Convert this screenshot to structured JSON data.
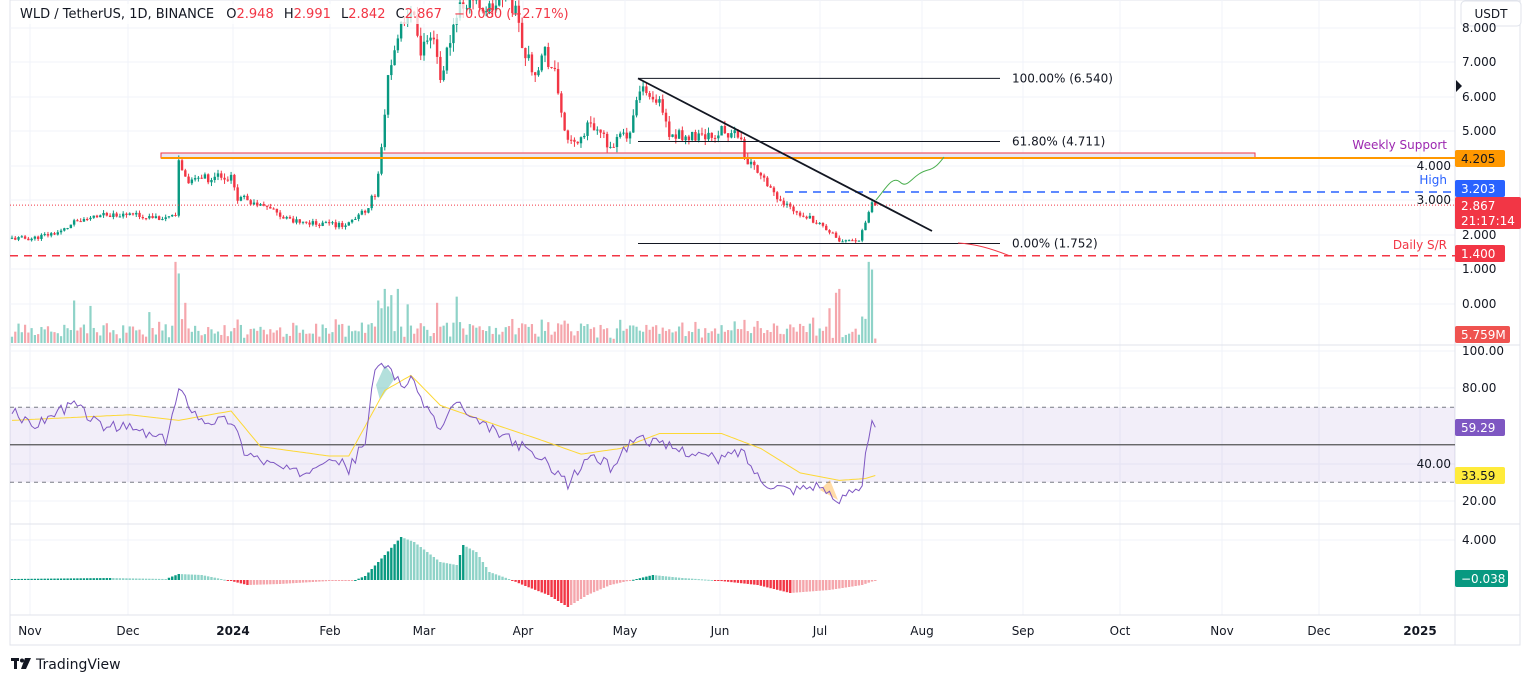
{
  "header": {
    "symbol": "WLD / TetherUS, 1D, BINANCE",
    "o_label": "O",
    "o_value": "2.948",
    "h_label": "H",
    "h_value": "2.991",
    "l_label": "L",
    "l_value": "2.842",
    "c_label": "C",
    "c_value": "2.867",
    "change": "−0.080 (−2.71%)"
  },
  "currency_button": "USDT",
  "price_axis": [
    "8.000",
    "7.000",
    "6.000",
    "5.000",
    "4.000",
    "3.000",
    "2.000",
    "1.000",
    "0.000"
  ],
  "rsi_axis": [
    "100.00",
    "80.00",
    "40.00",
    "20.00"
  ],
  "macd_axis": [
    "4.000"
  ],
  "time_axis": [
    "Nov",
    "Dec",
    "2024",
    "Feb",
    "Mar",
    "Apr",
    "May",
    "Jun",
    "Jul",
    "Aug",
    "Sep",
    "Oct",
    "Nov",
    "Dec",
    "2025"
  ],
  "badges": {
    "weekly_support": "4.205",
    "high": "3.203",
    "last_price": "2.867",
    "countdown": "21:17:14",
    "daily_sr": "1.400",
    "volume": "5.759M",
    "rsi": "59.29",
    "rsi_ma": "33.59",
    "macd": "−0.038"
  },
  "annotations": {
    "weekly_support_label": "Weekly Support",
    "high_label": "High",
    "daily_sr_label": "Daily S/R",
    "fib_100": "100.00% (6.540)",
    "fib_618": "61.80% (4.711)",
    "fib_0": "0.00% (1.752)"
  },
  "colors": {
    "up": "#089981",
    "down": "#f23645",
    "weekly_support": "#ff9800",
    "high": "#2962ff",
    "daily_sr": "#f23645",
    "rsi": "#7e57c2",
    "rsi_ma": "#fdd835",
    "label_purple": "#9c27b0"
  },
  "footer": {
    "brand": "TradingView"
  },
  "chart_data": {
    "type": "candlestick",
    "title": "WLD / TetherUS, 1D, BINANCE",
    "x_unit": "days since first visible candle",
    "ylim": [
      0,
      8.8
    ],
    "price_keypoints": [
      [
        0,
        1.9
      ],
      [
        6,
        1.9
      ],
      [
        15,
        2.1
      ],
      [
        19,
        2.35
      ],
      [
        30,
        2.6
      ],
      [
        36,
        2.6
      ],
      [
        47,
        2.5
      ],
      [
        50,
        2.5
      ],
      [
        51,
        4.1
      ],
      [
        54,
        3.6
      ],
      [
        67,
        3.7
      ],
      [
        69,
        3.1
      ],
      [
        76,
        2.9
      ],
      [
        85,
        2.4
      ],
      [
        97,
        2.3
      ],
      [
        103,
        2.3
      ],
      [
        108,
        2.7
      ],
      [
        111,
        3.2
      ],
      [
        113,
        4.4
      ],
      [
        115,
        6.5
      ],
      [
        117,
        7.5
      ],
      [
        122,
        8.5
      ],
      [
        125,
        7.4
      ],
      [
        129,
        7.5
      ],
      [
        131,
        6.5
      ],
      [
        136,
        8.5
      ],
      [
        140,
        8.9
      ],
      [
        146,
        8.5
      ],
      [
        151,
        9.0
      ],
      [
        154,
        8.5
      ],
      [
        157,
        7.2
      ],
      [
        160,
        6.8
      ],
      [
        163,
        7.3
      ],
      [
        166,
        6.6
      ],
      [
        168,
        5.6
      ],
      [
        170,
        4.6
      ],
      [
        174,
        4.8
      ],
      [
        177,
        5.3
      ],
      [
        180,
        4.9
      ],
      [
        183,
        4.6
      ],
      [
        188,
        4.9
      ],
      [
        190,
        5.3
      ],
      [
        192,
        6.2
      ],
      [
        195,
        5.9
      ],
      [
        198,
        5.8
      ],
      [
        201,
        4.9
      ],
      [
        204,
        4.9
      ],
      [
        210,
        4.8
      ],
      [
        217,
        5.0
      ],
      [
        223,
        4.8
      ],
      [
        224,
        4.2
      ],
      [
        229,
        3.8
      ],
      [
        232,
        3.4
      ],
      [
        235,
        2.9
      ],
      [
        238,
        2.8
      ],
      [
        244,
        2.5
      ],
      [
        249,
        2.2
      ],
      [
        253,
        1.8
      ],
      [
        259,
        1.8
      ],
      [
        261,
        2.4
      ],
      [
        263,
        2.95
      ],
      [
        264,
        2.867
      ]
    ],
    "last_ohlc": {
      "open": 2.948,
      "high": 2.991,
      "low": 2.842,
      "close": 2.867
    },
    "volume_base_m": 12,
    "volume_spikes_m": [
      [
        19,
        55
      ],
      [
        24,
        48
      ],
      [
        42,
        40
      ],
      [
        50,
        105
      ],
      [
        51,
        90
      ],
      [
        53,
        52
      ],
      [
        112,
        55
      ],
      [
        114,
        70
      ],
      [
        116,
        62
      ],
      [
        118,
        70
      ],
      [
        121,
        50
      ],
      [
        130,
        52
      ],
      [
        136,
        60
      ],
      [
        186,
        30
      ],
      [
        221,
        28
      ],
      [
        250,
        45
      ],
      [
        252,
        65
      ],
      [
        253,
        70
      ],
      [
        262,
        105
      ],
      [
        263,
        95
      ],
      [
        264,
        5.759
      ]
    ],
    "rsi_keypoints": [
      [
        0,
        68
      ],
      [
        6,
        60
      ],
      [
        19,
        72
      ],
      [
        27,
        60
      ],
      [
        36,
        59
      ],
      [
        47,
        52
      ],
      [
        51,
        79
      ],
      [
        58,
        63
      ],
      [
        67,
        63
      ],
      [
        71,
        47
      ],
      [
        76,
        42
      ],
      [
        88,
        34
      ],
      [
        97,
        45
      ],
      [
        103,
        37
      ],
      [
        108,
        52
      ],
      [
        111,
        90
      ],
      [
        115,
        93
      ],
      [
        119,
        82
      ],
      [
        122,
        84
      ],
      [
        131,
        58
      ],
      [
        136,
        74
      ],
      [
        140,
        63
      ],
      [
        146,
        59
      ],
      [
        155,
        50
      ],
      [
        166,
        37
      ],
      [
        170,
        29
      ],
      [
        177,
        45
      ],
      [
        183,
        38
      ],
      [
        191,
        55
      ],
      [
        198,
        50
      ],
      [
        210,
        45
      ],
      [
        216,
        42
      ],
      [
        223,
        47
      ],
      [
        229,
        31
      ],
      [
        238,
        26
      ],
      [
        247,
        29
      ],
      [
        252,
        18
      ],
      [
        256,
        26
      ],
      [
        260,
        29
      ],
      [
        261,
        47
      ],
      [
        263,
        61
      ],
      [
        264,
        59.29
      ]
    ],
    "rsi_ma_keypoints": [
      [
        0,
        63
      ],
      [
        36,
        66
      ],
      [
        51,
        63
      ],
      [
        67,
        68
      ],
      [
        76,
        49
      ],
      [
        97,
        44
      ],
      [
        103,
        44
      ],
      [
        114,
        79
      ],
      [
        122,
        87
      ],
      [
        131,
        71
      ],
      [
        149,
        60
      ],
      [
        161,
        53
      ],
      [
        174,
        45
      ],
      [
        186,
        48
      ],
      [
        198,
        56
      ],
      [
        217,
        56
      ],
      [
        229,
        48
      ],
      [
        241,
        35
      ],
      [
        253,
        31
      ],
      [
        261,
        32
      ],
      [
        264,
        33.59
      ]
    ],
    "rsi_levels": {
      "upper": 70,
      "middle": 50,
      "lower": 30
    },
    "macd_hist_keypoints": [
      [
        0,
        0.1
      ],
      [
        30,
        0.2
      ],
      [
        47,
        0.1
      ],
      [
        51,
        0.6
      ],
      [
        58,
        0.5
      ],
      [
        67,
        -0.1
      ],
      [
        72,
        -0.5
      ],
      [
        82,
        -0.4
      ],
      [
        97,
        -0.1
      ],
      [
        105,
        0
      ],
      [
        108,
        0.4
      ],
      [
        114,
        2.5
      ],
      [
        119,
        4.3
      ],
      [
        123,
        3.8
      ],
      [
        131,
        1.8
      ],
      [
        136,
        1.5
      ],
      [
        138,
        3.5
      ],
      [
        142,
        2.8
      ],
      [
        146,
        0.8
      ],
      [
        152,
        0.1
      ],
      [
        157,
        -0.6
      ],
      [
        164,
        -1.5
      ],
      [
        170,
        -2.7
      ],
      [
        176,
        -1.5
      ],
      [
        183,
        -0.5
      ],
      [
        191,
        0.1
      ],
      [
        196,
        0.5
      ],
      [
        205,
        0.2
      ],
      [
        214,
        0
      ],
      [
        228,
        -0.5
      ],
      [
        238,
        -1.3
      ],
      [
        250,
        -1.0
      ],
      [
        260,
        -0.5
      ],
      [
        264,
        -0.038
      ]
    ]
  }
}
